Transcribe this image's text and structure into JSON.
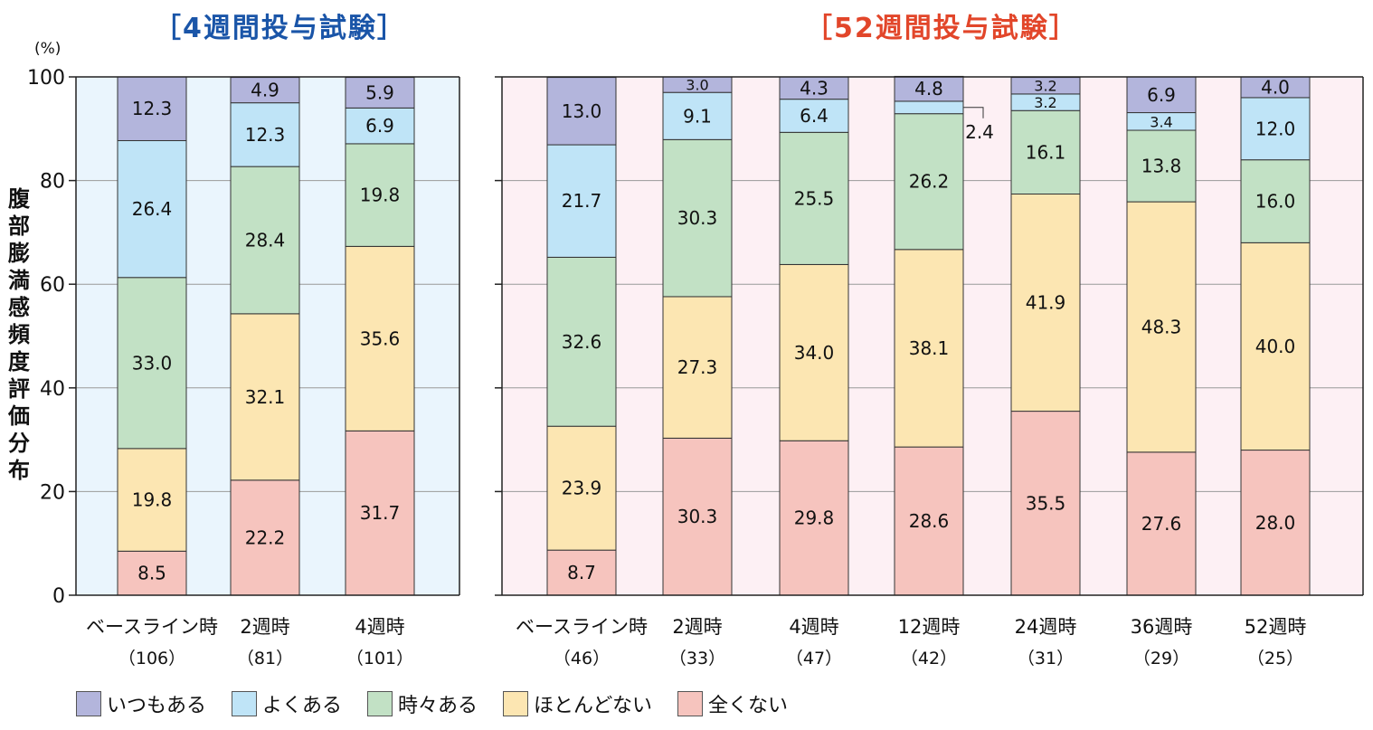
{
  "unit_label": "(%)",
  "y_axis_label": "腹部膨満感頻度評価分布",
  "legend": [
    {
      "label": "いつもある",
      "color": "#b3b5dc"
    },
    {
      "label": "よくある",
      "color": "#bfe4f7"
    },
    {
      "label": "時々ある",
      "color": "#c2e1c5"
    },
    {
      "label": "ほとんどない",
      "color": "#fce6b2"
    },
    {
      "label": "全くない",
      "color": "#f6c4be"
    }
  ],
  "chart_data": [
    {
      "type": "bar",
      "stacked": true,
      "title": "［4週間投与試験］",
      "title_color": "#1a55a8",
      "background": "#eaf5fd",
      "ylim": [
        0,
        100
      ],
      "yticks": [
        "0",
        "20",
        "40",
        "60",
        "80",
        "100"
      ],
      "categories": [
        "ベースライン時",
        "2週時",
        "4週時"
      ],
      "sample_sizes": [
        "（106）",
        "（81）",
        "（101）"
      ],
      "series": [
        {
          "name": "全くない",
          "values": [
            8.5,
            22.2,
            31.7
          ],
          "labels": [
            "8.5",
            "22.2",
            "31.7"
          ]
        },
        {
          "name": "ほとんどない",
          "values": [
            19.8,
            32.1,
            35.6
          ],
          "labels": [
            "19.8",
            "32.1",
            "35.6"
          ]
        },
        {
          "name": "時々ある",
          "values": [
            33.0,
            28.4,
            19.8
          ],
          "labels": [
            "33.0",
            "28.4",
            "19.8"
          ]
        },
        {
          "name": "よくある",
          "values": [
            26.4,
            12.3,
            6.9
          ],
          "labels": [
            "26.4",
            "12.3",
            "6.9"
          ]
        },
        {
          "name": "いつもある",
          "values": [
            12.3,
            4.9,
            5.9
          ],
          "labels": [
            "12.3",
            "4.9",
            "5.9"
          ]
        }
      ]
    },
    {
      "type": "bar",
      "stacked": true,
      "title": "［52週間投与試験］",
      "title_color": "#e2462a",
      "background": "#fdf0f4",
      "ylim": [
        0,
        100
      ],
      "categories": [
        "ベースライン時",
        "2週時",
        "4週時",
        "12週時",
        "24週時",
        "36週時",
        "52週時"
      ],
      "sample_sizes": [
        "（46）",
        "（33）",
        "（47）",
        "（42）",
        "（31）",
        "（29）",
        "（25）"
      ],
      "series": [
        {
          "name": "全くない",
          "values": [
            8.7,
            30.3,
            29.8,
            28.6,
            35.5,
            27.6,
            28.0
          ],
          "labels": [
            "8.7",
            "30.3",
            "29.8",
            "28.6",
            "35.5",
            "27.6",
            "28.0"
          ]
        },
        {
          "name": "ほとんどない",
          "values": [
            23.9,
            27.3,
            34.0,
            38.1,
            41.9,
            48.3,
            40.0
          ],
          "labels": [
            "23.9",
            "27.3",
            "34.0",
            "38.1",
            "41.9",
            "48.3",
            "40.0"
          ]
        },
        {
          "name": "時々ある",
          "values": [
            32.6,
            30.3,
            25.5,
            26.2,
            16.1,
            13.8,
            16.0
          ],
          "labels": [
            "32.6",
            "30.3",
            "25.5",
            "26.2",
            "16.1",
            "13.8",
            "16.0"
          ]
        },
        {
          "name": "よくある",
          "values": [
            21.7,
            9.1,
            6.4,
            2.4,
            3.2,
            3.4,
            12.0
          ],
          "labels": [
            "21.7",
            "9.1",
            "6.4",
            "2.4",
            "3.2",
            "3.4",
            "12.0"
          ]
        },
        {
          "name": "いつもある",
          "values": [
            13.0,
            3.0,
            4.3,
            4.8,
            3.2,
            6.9,
            4.0
          ],
          "labels": [
            "13.0",
            "3.0",
            "4.3",
            "4.8",
            "3.2",
            "6.9",
            "4.0"
          ]
        }
      ]
    }
  ]
}
